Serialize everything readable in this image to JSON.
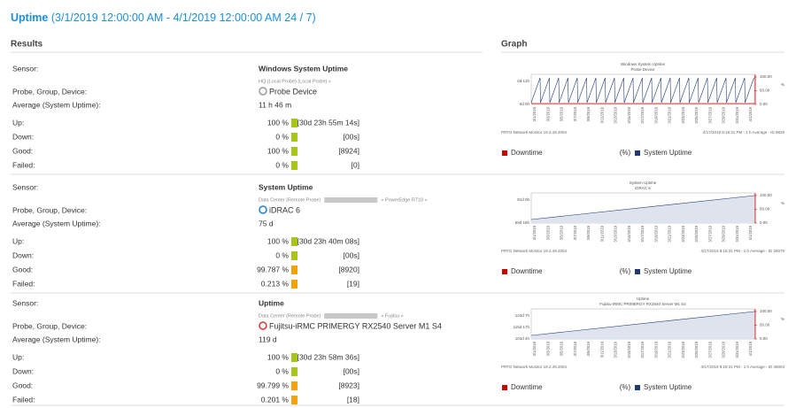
{
  "header": {
    "title": "Uptime",
    "range": "(3/1/2019 12:00:00 AM - 4/1/2019 12:00:00 AM 24 / 7)"
  },
  "columns": {
    "results": "Results",
    "graph": "Graph"
  },
  "labels": {
    "sensor": "Sensor:",
    "device": "Probe, Group, Device:",
    "average": "Average (System Uptime):",
    "up": "Up:",
    "down": "Down:",
    "good": "Good:",
    "failed": "Failed:"
  },
  "graph_dates": [
    "3/1/2019",
    "3/3/2019",
    "3/5/2019",
    "3/7/2019",
    "3/9/2019",
    "3/11/2019",
    "3/13/2019",
    "3/15/2019",
    "3/17/2019",
    "3/19/2019",
    "3/21/2019",
    "3/23/2019",
    "3/25/2019",
    "3/27/2019",
    "3/29/2019",
    "3/31/2019",
    "4/1/2019"
  ],
  "sensors": [
    {
      "name": "Windows System Uptime",
      "path": "HQ (Local Probe) (Local Probe) »",
      "path_tail": "",
      "device": "Probe Device",
      "average": "11 h 46 m",
      "stats": [
        {
          "percent": 100,
          "percent_label": "100 %",
          "count": "[30d 23h 55m 14s]",
          "color": "#a6c41a"
        },
        {
          "percent": 0,
          "percent_label": "0 %",
          "count": "[00s]",
          "color": "#a6c41a"
        },
        {
          "percent": 100,
          "percent_label": "100 %",
          "count": "[8924]",
          "color": "#a6c41a"
        },
        {
          "percent": 0,
          "percent_label": "0 %",
          "count": "[0]",
          "color": "#a6c41a"
        }
      ],
      "graph": {
        "title": "Windows System Uptime",
        "subtitle": "Probe Device",
        "y_labels": [
          "0d 12h",
          "0d 0h"
        ],
        "y2_labels": [
          "100.00",
          "50.00",
          "0.00"
        ],
        "y2_unit": "%",
        "footer_left": "PRTG Network Monitor 19.2.49.2004",
        "footer_right": "4/17/2019 8:18:31 PM - 1 h Average - ID 9829",
        "legend": [
          "Downtime",
          "(%)",
          "System Uptime"
        ]
      }
    },
    {
      "name": "System Uptime",
      "path": "Data Center (Remote Probe)",
      "path_tail": "» PowerEdge R710 »",
      "device": "iDRAC 6",
      "average": "75 d",
      "stats": [
        {
          "percent": 100,
          "percent_label": "100 %",
          "count": "[30d 23h 40m 08s]",
          "color": "#a6c41a"
        },
        {
          "percent": 0,
          "percent_label": "0 %",
          "count": "[00s]",
          "color": "#a6c41a"
        },
        {
          "percent": 99.787,
          "percent_label": "99.787 %",
          "count": "[8920]",
          "color": "#f4a20c"
        },
        {
          "percent": 0.213,
          "percent_label": "0.213 %",
          "count": "[19]",
          "color": "#f4a20c"
        }
      ],
      "graph": {
        "title": "System Uptime",
        "subtitle": "iDRAC 6",
        "y_labels": [
          "81d 0h",
          "69d 18h"
        ],
        "y2_labels": [
          "100.00",
          "50.00",
          "0.00"
        ],
        "y2_unit": "%",
        "footer_left": "PRTG Network Monitor 19.2.49.2004",
        "footer_right": "4/17/2019 8:18:31 PM - 1 h Average - ID 28079",
        "legend": [
          "Downtime",
          "(%)",
          "System Uptime"
        ]
      }
    },
    {
      "name": "Uptime",
      "path": "Data Center (Remote Probe)",
      "path_tail": "» Fujitsu »",
      "device": "Fujitsu-iRMC PRIMERGY RX2540 Server M1 S4",
      "average": "119 d",
      "stats": [
        {
          "percent": 100,
          "percent_label": "100 %",
          "count": "[30d 23h 58m 36s]",
          "color": "#a6c41a"
        },
        {
          "percent": 0,
          "percent_label": "0 %",
          "count": "[00s]",
          "color": "#a6c41a"
        },
        {
          "percent": 99.799,
          "percent_label": "99.799 %",
          "count": "[8923]",
          "color": "#f4a20c"
        },
        {
          "percent": 0.201,
          "percent_label": "0.201 %",
          "count": "[18]",
          "color": "#f4a20c"
        }
      ],
      "graph": {
        "title": "Uptime",
        "subtitle": "Fujitsu-iRMC PRIMERGY RX2540 Server M1 S4",
        "y_labels": [
          "123d 7h",
          "115d 17h",
          "104d 4h"
        ],
        "y2_labels": [
          "100.00",
          "50.00",
          "0.00"
        ],
        "y2_unit": "%",
        "footer_left": "PRTG Network Monitor 19.2.49.2004",
        "footer_right": "4/17/2019 8:18:31 PM - 1 h Average - ID 46004",
        "legend": [
          "Downtime",
          "(%)",
          "System Uptime"
        ]
      }
    }
  ]
}
